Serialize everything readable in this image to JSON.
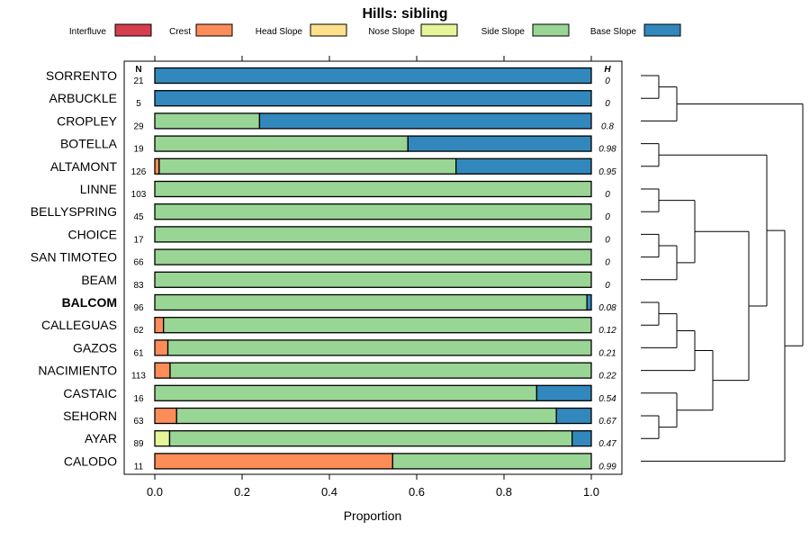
{
  "chart_data": {
    "type": "bar",
    "orientation": "horizontal-stacked",
    "title": "Hills: sibling",
    "xlabel": "Proportion",
    "xlim": [
      0,
      1
    ],
    "x_ticks": [
      "0.0",
      "0.2",
      "0.4",
      "0.6",
      "0.8",
      "1.0"
    ],
    "n_header": "N",
    "h_header": "H",
    "legend": [
      {
        "name": "Interfluve",
        "color": "#d53e4f"
      },
      {
        "name": "Crest",
        "color": "#fc8d59"
      },
      {
        "name": "Head Slope",
        "color": "#fee08b"
      },
      {
        "name": "Nose Slope",
        "color": "#e6f598"
      },
      {
        "name": "Side Slope",
        "color": "#99d594"
      },
      {
        "name": "Base Slope",
        "color": "#3288bd"
      }
    ],
    "rows": [
      {
        "label": "SORRENTO",
        "n": "21",
        "h": "0",
        "bold": false,
        "values": [
          0,
          0,
          0,
          0,
          0,
          1.0
        ]
      },
      {
        "label": "ARBUCKLE",
        "n": "5",
        "h": "0",
        "bold": false,
        "values": [
          0,
          0,
          0,
          0,
          0,
          1.0
        ]
      },
      {
        "label": "CROPLEY",
        "n": "29",
        "h": "0.8",
        "bold": false,
        "values": [
          0,
          0,
          0,
          0,
          0.24,
          0.76
        ]
      },
      {
        "label": "BOTELLA",
        "n": "19",
        "h": "0.98",
        "bold": false,
        "values": [
          0,
          0,
          0,
          0,
          0.58,
          0.42
        ]
      },
      {
        "label": "ALTAMONT",
        "n": "126",
        "h": "0.95",
        "bold": false,
        "values": [
          0,
          0.01,
          0,
          0,
          0.68,
          0.31
        ]
      },
      {
        "label": "LINNE",
        "n": "103",
        "h": "0",
        "bold": false,
        "values": [
          0,
          0,
          0,
          0,
          1.0,
          0
        ]
      },
      {
        "label": "BELLYSPRING",
        "n": "45",
        "h": "0",
        "bold": false,
        "values": [
          0,
          0,
          0,
          0,
          1.0,
          0
        ]
      },
      {
        "label": "CHOICE",
        "n": "17",
        "h": "0",
        "bold": false,
        "values": [
          0,
          0,
          0,
          0,
          1.0,
          0
        ]
      },
      {
        "label": "SAN TIMOTEO",
        "n": "66",
        "h": "0",
        "bold": false,
        "values": [
          0,
          0,
          0,
          0,
          1.0,
          0
        ]
      },
      {
        "label": "BEAM",
        "n": "83",
        "h": "0",
        "bold": false,
        "values": [
          0,
          0,
          0,
          0,
          1.0,
          0
        ]
      },
      {
        "label": "BALCOM",
        "n": "96",
        "h": "0.08",
        "bold": true,
        "values": [
          0,
          0,
          0,
          0,
          0.99,
          0.01
        ]
      },
      {
        "label": "CALLEGUAS",
        "n": "62",
        "h": "0.12",
        "bold": false,
        "values": [
          0,
          0.02,
          0,
          0,
          0.98,
          0
        ]
      },
      {
        "label": "GAZOS",
        "n": "61",
        "h": "0.21",
        "bold": false,
        "values": [
          0,
          0.03,
          0,
          0,
          0.97,
          0
        ]
      },
      {
        "label": "NACIMIENTO",
        "n": "113",
        "h": "0.22",
        "bold": false,
        "values": [
          0,
          0.035,
          0,
          0,
          0.965,
          0
        ]
      },
      {
        "label": "CASTAIC",
        "n": "16",
        "h": "0.54",
        "bold": false,
        "values": [
          0,
          0,
          0,
          0,
          0.875,
          0.125
        ]
      },
      {
        "label": "SEHORN",
        "n": "63",
        "h": "0.67",
        "bold": false,
        "values": [
          0,
          0.05,
          0,
          0,
          0.87,
          0.08
        ]
      },
      {
        "label": "AYAR",
        "n": "89",
        "h": "0.47",
        "bold": false,
        "values": [
          0,
          0,
          0,
          0.034,
          0.922,
          0.044
        ]
      },
      {
        "label": "CALODO",
        "n": "11",
        "h": "0.99",
        "bold": false,
        "values": [
          0,
          0.545,
          0,
          0,
          0.455,
          0
        ]
      }
    ],
    "dendrogram": {
      "tree": [
        [
          [
            "SORRENTO",
            "ARBUCKLE"
          ],
          "CROPLEY"
        ],
        [
          [
            [
              "BOTELLA",
              "ALTAMONT"
            ],
            [
              [
                [
                  "LINNE",
                  "BELLYSPRING"
                ],
                [
                  [
                    "CHOICE",
                    "SAN TIMOTEO"
                  ],
                  "BEAM"
                ]
              ],
              [
                [
                  [
                    [
                      [
                        "BALCOM",
                        "CALLEGUAS"
                      ],
                      "GAZOS"
                    ],
                    "NACIMIENTO"
                  ],
                  [
                    "CASTAIC",
                    [
                      "SEHORN",
                      "AYAR"
                    ]
                  ]
                ]
              ]
            ]
          ],
          "CALODO"
        ]
      ]
    }
  }
}
